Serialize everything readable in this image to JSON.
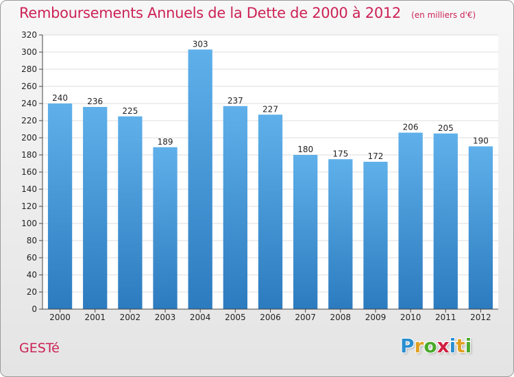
{
  "header": {
    "title": "Remboursements Annuels de la Dette de 2000 à 2012",
    "subtitle": "(en milliers d'€)"
  },
  "footer": {
    "commune": "GESTé",
    "logo_letters": [
      "P",
      "r",
      "o",
      "x",
      "i",
      "t",
      "i"
    ],
    "logo_colors": [
      "#2a8fd0",
      "#e0a020",
      "#4aaa2a",
      "#d02040",
      "#2a8fd0",
      "#e0a020",
      "#4aaa2a"
    ]
  },
  "colors": {
    "title": "#cc2255",
    "bar_top": "#5fb0ea",
    "bar_bottom": "#2c7bbf"
  },
  "chart_data": {
    "type": "bar",
    "title": "Remboursements Annuels de la Dette de 2000 à 2012",
    "subtitle": "(en milliers d'€)",
    "categories": [
      "2000",
      "2001",
      "2002",
      "2003",
      "2004",
      "2005",
      "2006",
      "2007",
      "2008",
      "2009",
      "2010",
      "2011",
      "2012"
    ],
    "values": [
      240,
      236,
      225,
      189,
      303,
      237,
      227,
      180,
      175,
      172,
      206,
      205,
      190
    ],
    "ylim": [
      0,
      320
    ],
    "yticks": [
      0,
      20,
      40,
      60,
      80,
      100,
      120,
      140,
      160,
      180,
      200,
      220,
      240,
      260,
      280,
      300,
      320
    ],
    "grid": true,
    "legend": "none"
  }
}
